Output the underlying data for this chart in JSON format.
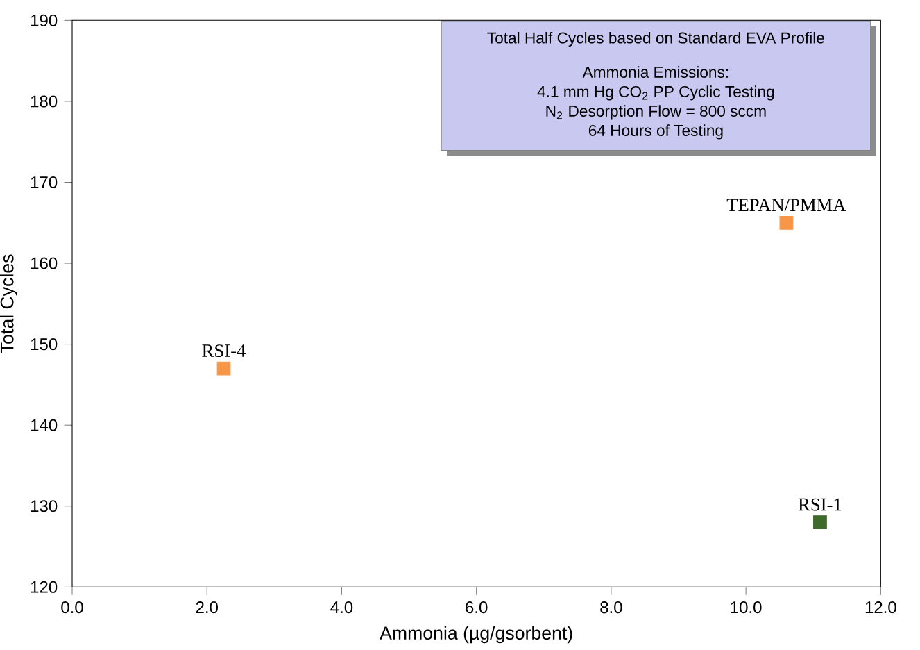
{
  "chart_data": {
    "type": "scatter",
    "xlabel": "Ammonia (µg/gsorbent)",
    "ylabel": "Total Cycles",
    "xlim": [
      0,
      12
    ],
    "ylim": [
      120,
      190
    ],
    "xticks": [
      {
        "value": 0,
        "label": "0.0"
      },
      {
        "value": 2,
        "label": "2.0"
      },
      {
        "value": 4,
        "label": "4.0"
      },
      {
        "value": 6,
        "label": "6.0"
      },
      {
        "value": 8,
        "label": "8.0"
      },
      {
        "value": 10,
        "label": "10.0"
      },
      {
        "value": 12,
        "label": "12.0"
      }
    ],
    "yticks": [
      120,
      130,
      140,
      150,
      160,
      170,
      180,
      190
    ],
    "grid": false,
    "legend": false,
    "marker": "square",
    "series": [
      {
        "name": "RSI-4",
        "color": "#f79646",
        "x": [
          2.25
        ],
        "values": [
          147
        ]
      },
      {
        "name": "TEPAN/PMMA",
        "color": "#f79646",
        "x": [
          10.6
        ],
        "values": [
          165
        ]
      },
      {
        "name": "RSI-1",
        "color": "#3f6b2a",
        "x": [
          11.1
        ],
        "values": [
          128
        ]
      }
    ],
    "annotations": [
      "Total Half Cycles based on Standard EVA Profile",
      "Ammonia Emissions:",
      "4.1 mm Hg CO$_{2}$ PP Cyclic Testing",
      "N$_{2}$ Desorption Flow = 800 sccm",
      "64 Hours of Testing"
    ]
  }
}
